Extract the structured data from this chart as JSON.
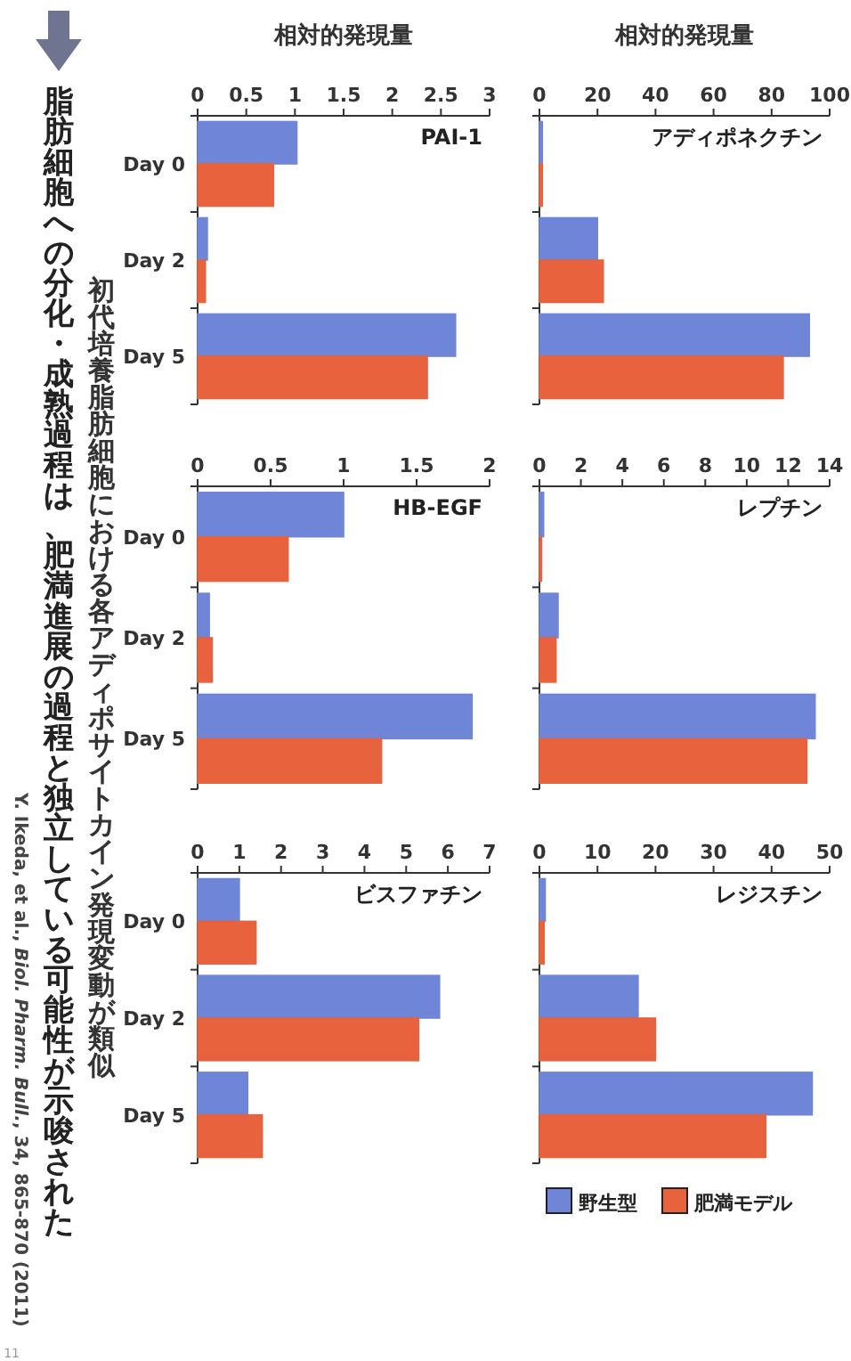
{
  "chart_data": [
    {
      "type": "bar",
      "orientation": "horizontal",
      "title": "アディポネクチン",
      "xlabel": "相対的発現量",
      "categories": [
        null,
        null,
        null
      ],
      "xlim": [
        0,
        100
      ],
      "xticks": [
        0,
        20,
        40,
        60,
        80,
        100
      ],
      "tick_labels": "x",
      "series": [
        {
          "color": "#6f86d8",
          "values": [
            1,
            20,
            93
          ]
        },
        {
          "color": "#e8623e",
          "values": [
            1,
            22,
            84
          ]
        }
      ]
    },
    {
      "type": "bar",
      "orientation": "horizontal",
      "title": "レプチン",
      "categories": [
        null,
        null,
        null
      ],
      "xlim": [
        0,
        14
      ],
      "xticks": [
        0,
        2,
        4,
        6,
        8,
        10,
        12,
        14
      ],
      "tick_labels": "x",
      "series": [
        {
          "color": "#6f86d8",
          "values": [
            0.2,
            0.9,
            13.3
          ]
        },
        {
          "color": "#e8623e",
          "values": [
            0.1,
            0.8,
            12.9
          ]
        }
      ]
    },
    {
      "type": "bar",
      "orientation": "horizontal",
      "title": "レジスチン",
      "categories": [
        null,
        null,
        null
      ],
      "xlim": [
        0,
        50
      ],
      "xticks": [
        0,
        10,
        20,
        30,
        40,
        50
      ],
      "tick_labels": "x",
      "legend": "bottom",
      "series": [
        {
          "name": "野生型",
          "color": "#6f86d8",
          "values": [
            1,
            17,
            47
          ]
        },
        {
          "name": "肥満モデル",
          "color": "#e8623e",
          "values": [
            0.8,
            20,
            39
          ]
        }
      ]
    },
    {
      "type": "bar",
      "orientation": "horizontal",
      "title": "PAI-1",
      "xlabel": "相対的発現量",
      "categories": [
        "Day 0",
        "Day 2",
        "Day 5"
      ],
      "xlim": [
        0,
        3
      ],
      "xticks": [
        0,
        0.5,
        1,
        1.5,
        2,
        2.5,
        3
      ],
      "series": [
        {
          "color": "#6f86d8",
          "values": [
            1.02,
            0.1,
            2.65
          ]
        },
        {
          "color": "#e8623e",
          "values": [
            0.78,
            0.08,
            2.36
          ]
        }
      ]
    },
    {
      "type": "bar",
      "orientation": "horizontal",
      "title": "HB-EGF",
      "categories": [
        "Day 0",
        "Day 2",
        "Day 5"
      ],
      "xlim": [
        0,
        2
      ],
      "xticks": [
        0,
        0.5,
        1,
        1.5,
        2
      ],
      "series": [
        {
          "color": "#6f86d8",
          "values": [
            1.0,
            0.08,
            1.88
          ]
        },
        {
          "color": "#e8623e",
          "values": [
            0.62,
            0.1,
            1.26
          ]
        }
      ]
    },
    {
      "type": "bar",
      "orientation": "horizontal",
      "title": "ビスファチン",
      "categories": [
        "Day 0",
        "Day 2",
        "Day 5"
      ],
      "xlim": [
        0,
        7
      ],
      "xticks": [
        0,
        1,
        2,
        3,
        4,
        5,
        6,
        7
      ],
      "series": [
        {
          "color": "#6f86d8",
          "values": [
            1.0,
            5.8,
            1.2
          ]
        },
        {
          "color": "#e8623e",
          "values": [
            1.4,
            5.3,
            1.55
          ]
        }
      ]
    },
    {
      "type": "other",
      "title": "初代培養脂肪細胞における各アディポサイトカイン発現変動が類似",
      "annotations": [
        "脂肪細胞への分化・成熟過程は、肥満進展の過程と独立している可能性が示唆された",
        "Y. Ikeda, et al., *Biol. Pharm. Bull.*, 34, 865-870 (2011)",
        "11"
      ]
    }
  ]
}
